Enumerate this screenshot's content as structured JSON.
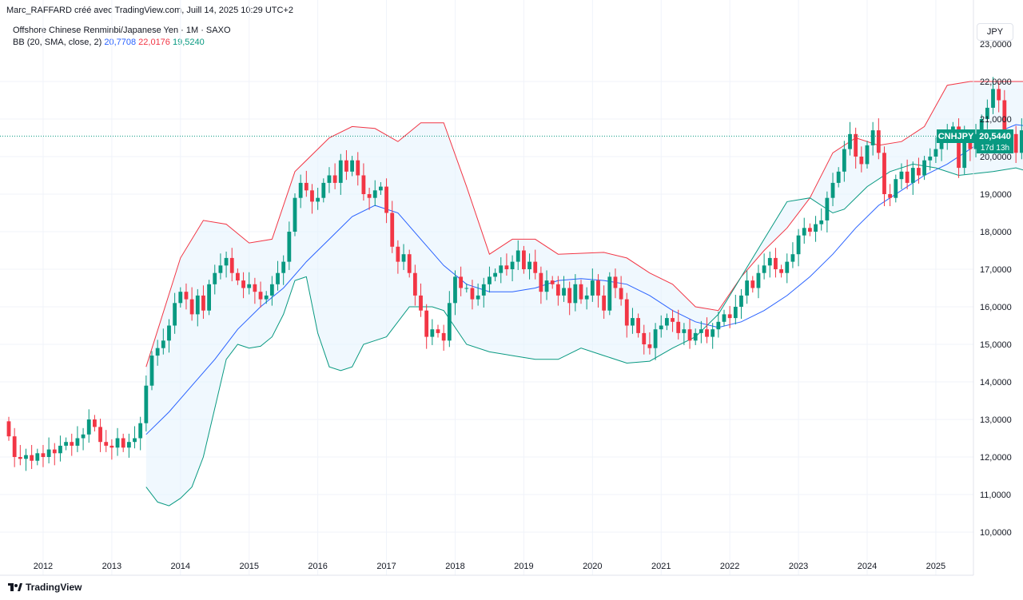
{
  "header": {
    "text": "Marc_RAFFARD créé avec TradingView.com, Juill 14, 2025 10:29 UTC+2"
  },
  "legend": {
    "symbol_line": "Offshore Chinese Renminbi/Japanese Yen · 1M · SAXO",
    "bb_label": "BB (20, SMA, close, 2)",
    "bb_mid": "20,7708",
    "bb_upper": "22,0176",
    "bb_lower": "19,5240"
  },
  "currency": "JPY",
  "price_tag": {
    "symbol": "CNHJPY",
    "value": "20,5440",
    "countdown": "17d 13h"
  },
  "footer": {
    "brand": "TradingView"
  },
  "colors": {
    "up": "#089981",
    "down": "#f23645",
    "mid": "#2962ff",
    "upper": "#f23645",
    "lower": "#089981",
    "fill": "#e3f2fd"
  },
  "chart_data": {
    "type": "candlestick",
    "y_ticks": [
      "10,0000",
      "11,0000",
      "12,0000",
      "13,0000",
      "14,0000",
      "15,0000",
      "16,0000",
      "17,0000",
      "18,0000",
      "19,0000",
      "20,0000",
      "21,0000",
      "22,0000"
    ],
    "y_top_partial": "23,0000",
    "ylim": [
      9.6,
      23.0
    ],
    "x_ticks": [
      "2012",
      "2013",
      "2014",
      "2015",
      "2016",
      "2017",
      "2018",
      "2019",
      "2020",
      "2021",
      "2022",
      "2023",
      "2024",
      "2025"
    ],
    "current_price": 20.544,
    "closes": [
      12.55,
      12.0,
      11.95,
      12.05,
      11.9,
      12.1,
      12.0,
      12.2,
      12.1,
      12.3,
      12.4,
      12.3,
      12.5,
      12.6,
      13.0,
      12.8,
      12.4,
      12.3,
      12.25,
      12.5,
      12.25,
      12.4,
      12.5,
      12.9,
      13.9,
      14.7,
      14.9,
      15.1,
      15.5,
      16.1,
      16.4,
      16.2,
      15.8,
      16.3,
      15.9,
      16.6,
      16.9,
      17.1,
      17.3,
      16.9,
      16.7,
      16.5,
      16.6,
      16.4,
      16.2,
      16.3,
      16.6,
      16.9,
      17.2,
      18.0,
      18.9,
      19.3,
      19.1,
      18.8,
      18.9,
      19.3,
      19.5,
      19.3,
      19.9,
      19.6,
      19.9,
      19.5,
      19.0,
      18.9,
      19.1,
      19.2,
      18.5,
      17.6,
      17.2,
      17.4,
      16.9,
      16.3,
      15.9,
      15.2,
      15.4,
      15.3,
      15.1,
      16.1,
      16.8,
      16.5,
      16.5,
      16.2,
      16.3,
      16.6,
      16.8,
      16.9,
      17.1,
      17.0,
      17.2,
      17.5,
      17.0,
      17.2,
      16.9,
      16.4,
      16.7,
      16.6,
      16.3,
      16.5,
      16.1,
      16.6,
      16.2,
      16.3,
      16.7,
      16.3,
      15.9,
      16.8,
      16.5,
      16.2,
      15.5,
      15.7,
      15.3,
      15.0,
      14.9,
      15.4,
      15.5,
      15.7,
      15.6,
      15.3,
      15.4,
      15.1,
      15.3,
      15.4,
      15.2,
      15.4,
      15.6,
      15.8,
      15.7,
      16.0,
      16.3,
      16.7,
      16.5,
      16.9,
      17.1,
      17.3,
      17.0,
      16.9,
      17.2,
      17.4,
      17.9,
      18.1,
      18.0,
      18.2,
      18.3,
      18.9,
      19.3,
      19.6,
      20.2,
      20.6,
      20.0,
      19.8,
      20.3,
      20.7,
      20.1,
      19.0,
      18.9,
      19.4,
      19.6,
      19.3,
      19.7,
      19.5,
      19.9,
      20.0,
      20.2,
      20.4,
      20.6,
      20.8,
      19.7,
      20.5,
      20.2,
      20.6,
      21.0,
      21.3,
      21.8,
      21.5,
      20.3,
      20.6,
      20.1,
      20.7,
      21.1,
      21.3,
      20.5,
      20.3,
      20.7,
      19.4,
      19.7,
      20.0,
      20.54
    ],
    "bb_upper": [
      {
        "i": 24,
        "v": 14.4
      },
      {
        "i": 30,
        "v": 17.3
      },
      {
        "i": 34,
        "v": 18.3
      },
      {
        "i": 38,
        "v": 18.2
      },
      {
        "i": 42,
        "v": 17.7
      },
      {
        "i": 46,
        "v": 17.8
      },
      {
        "i": 50,
        "v": 19.6
      },
      {
        "i": 56,
        "v": 20.5
      },
      {
        "i": 60,
        "v": 20.8
      },
      {
        "i": 64,
        "v": 20.75
      },
      {
        "i": 68,
        "v": 20.4
      },
      {
        "i": 72,
        "v": 20.9
      },
      {
        "i": 76,
        "v": 20.9
      },
      {
        "i": 80,
        "v": 19.2
      },
      {
        "i": 84,
        "v": 17.4
      },
      {
        "i": 88,
        "v": 17.8
      },
      {
        "i": 92,
        "v": 17.8
      },
      {
        "i": 96,
        "v": 17.4
      },
      {
        "i": 104,
        "v": 17.45
      },
      {
        "i": 108,
        "v": 17.3
      },
      {
        "i": 112,
        "v": 16.9
      },
      {
        "i": 116,
        "v": 16.6
      },
      {
        "i": 120,
        "v": 16.0
      },
      {
        "i": 124,
        "v": 15.9
      },
      {
        "i": 128,
        "v": 16.8
      },
      {
        "i": 132,
        "v": 17.5
      },
      {
        "i": 136,
        "v": 18.1
      },
      {
        "i": 140,
        "v": 18.9
      },
      {
        "i": 144,
        "v": 20.1
      },
      {
        "i": 148,
        "v": 20.5
      },
      {
        "i": 152,
        "v": 20.3
      },
      {
        "i": 156,
        "v": 20.4
      },
      {
        "i": 160,
        "v": 20.8
      },
      {
        "i": 164,
        "v": 21.9
      },
      {
        "i": 168,
        "v": 22.0
      },
      {
        "i": 172,
        "v": 22.0
      },
      {
        "i": 176,
        "v": 22.0
      },
      {
        "i": 180,
        "v": 22.0
      }
    ],
    "bb_mid": [
      {
        "i": 24,
        "v": 12.6
      },
      {
        "i": 28,
        "v": 13.2
      },
      {
        "i": 32,
        "v": 13.9
      },
      {
        "i": 36,
        "v": 14.6
      },
      {
        "i": 40,
        "v": 15.4
      },
      {
        "i": 44,
        "v": 16.0
      },
      {
        "i": 48,
        "v": 16.5
      },
      {
        "i": 52,
        "v": 17.2
      },
      {
        "i": 56,
        "v": 17.8
      },
      {
        "i": 60,
        "v": 18.4
      },
      {
        "i": 64,
        "v": 18.7
      },
      {
        "i": 68,
        "v": 18.5
      },
      {
        "i": 72,
        "v": 17.8
      },
      {
        "i": 76,
        "v": 17.1
      },
      {
        "i": 80,
        "v": 16.6
      },
      {
        "i": 84,
        "v": 16.4
      },
      {
        "i": 88,
        "v": 16.4
      },
      {
        "i": 92,
        "v": 16.5
      },
      {
        "i": 96,
        "v": 16.7
      },
      {
        "i": 100,
        "v": 16.75
      },
      {
        "i": 104,
        "v": 16.7
      },
      {
        "i": 108,
        "v": 16.6
      },
      {
        "i": 112,
        "v": 16.3
      },
      {
        "i": 116,
        "v": 15.9
      },
      {
        "i": 120,
        "v": 15.6
      },
      {
        "i": 124,
        "v": 15.45
      },
      {
        "i": 128,
        "v": 15.6
      },
      {
        "i": 132,
        "v": 15.9
      },
      {
        "i": 136,
        "v": 16.3
      },
      {
        "i": 140,
        "v": 16.8
      },
      {
        "i": 144,
        "v": 17.4
      },
      {
        "i": 148,
        "v": 18.1
      },
      {
        "i": 152,
        "v": 18.7
      },
      {
        "i": 156,
        "v": 19.1
      },
      {
        "i": 160,
        "v": 19.5
      },
      {
        "i": 164,
        "v": 19.8
      },
      {
        "i": 168,
        "v": 20.2
      },
      {
        "i": 172,
        "v": 20.6
      },
      {
        "i": 176,
        "v": 20.85
      },
      {
        "i": 180,
        "v": 20.77
      }
    ],
    "bb_lower": [
      {
        "i": 24,
        "v": 11.2
      },
      {
        "i": 26,
        "v": 10.8
      },
      {
        "i": 28,
        "v": 10.7
      },
      {
        "i": 30,
        "v": 10.9
      },
      {
        "i": 32,
        "v": 11.2
      },
      {
        "i": 34,
        "v": 12.0
      },
      {
        "i": 36,
        "v": 13.3
      },
      {
        "i": 38,
        "v": 14.6
      },
      {
        "i": 40,
        "v": 15.0
      },
      {
        "i": 42,
        "v": 14.9
      },
      {
        "i": 44,
        "v": 14.95
      },
      {
        "i": 46,
        "v": 15.2
      },
      {
        "i": 48,
        "v": 15.8
      },
      {
        "i": 50,
        "v": 16.7
      },
      {
        "i": 52,
        "v": 16.8
      },
      {
        "i": 54,
        "v": 15.3
      },
      {
        "i": 56,
        "v": 14.4
      },
      {
        "i": 58,
        "v": 14.3
      },
      {
        "i": 60,
        "v": 14.4
      },
      {
        "i": 62,
        "v": 15.0
      },
      {
        "i": 64,
        "v": 15.1
      },
      {
        "i": 66,
        "v": 15.2
      },
      {
        "i": 70,
        "v": 16.0
      },
      {
        "i": 74,
        "v": 16.0
      },
      {
        "i": 76,
        "v": 15.9
      },
      {
        "i": 80,
        "v": 15.0
      },
      {
        "i": 84,
        "v": 14.8
      },
      {
        "i": 88,
        "v": 14.7
      },
      {
        "i": 92,
        "v": 14.6
      },
      {
        "i": 96,
        "v": 14.6
      },
      {
        "i": 100,
        "v": 14.9
      },
      {
        "i": 104,
        "v": 14.7
      },
      {
        "i": 108,
        "v": 14.5
      },
      {
        "i": 112,
        "v": 14.55
      },
      {
        "i": 116,
        "v": 14.9
      },
      {
        "i": 120,
        "v": 15.2
      },
      {
        "i": 124,
        "v": 15.8
      },
      {
        "i": 128,
        "v": 16.8
      },
      {
        "i": 132,
        "v": 17.8
      },
      {
        "i": 136,
        "v": 18.8
      },
      {
        "i": 140,
        "v": 18.9
      },
      {
        "i": 144,
        "v": 18.5
      },
      {
        "i": 146,
        "v": 18.6
      },
      {
        "i": 150,
        "v": 19.2
      },
      {
        "i": 154,
        "v": 19.6
      },
      {
        "i": 158,
        "v": 19.8
      },
      {
        "i": 162,
        "v": 19.7
      },
      {
        "i": 166,
        "v": 19.5
      },
      {
        "i": 172,
        "v": 19.6
      },
      {
        "i": 176,
        "v": 19.7
      },
      {
        "i": 180,
        "v": 19.52
      }
    ]
  }
}
